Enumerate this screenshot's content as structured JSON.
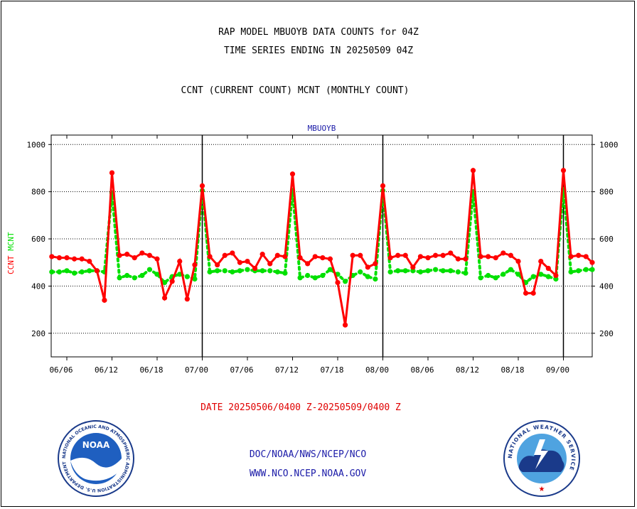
{
  "header": {
    "title": "RAP MODEL MBUOYB DATA COUNTS for 04Z",
    "subtitle": "TIME SERIES ENDING IN 20250509 04Z",
    "legend": "CCNT (CURRENT COUNT) MCNT (MONTHLY COUNT)"
  },
  "footer": {
    "date_range": "DATE 20250506/0400 Z-20250509/0400 Z",
    "link1": "DOC/NOAA/NWS/NCEP/NCO",
    "link2": "WWW.NCO.NCEP.NOAA.GOV"
  },
  "logos": {
    "left": {
      "name": "noaa-logo",
      "text": "NOAA",
      "ring_text": "NATIONAL OCEANIC AND ATMOSPHERIC ADMINISTRATION  U.S. DEPARTMENT OF COMMERCE"
    },
    "right": {
      "name": "nws-logo",
      "ring_text": "NATIONAL WEATHER SERVICE"
    }
  },
  "chart_data": {
    "type": "line",
    "title": "MBUOYB",
    "ylabel_left": [
      "CCNT",
      "MCNT"
    ],
    "ylim": [
      100,
      1040
    ],
    "yticks": [
      200,
      400,
      600,
      800,
      1000
    ],
    "grid": true,
    "x_tick_labels": [
      "06/06",
      "06/12",
      "06/18",
      "07/00",
      "07/06",
      "07/12",
      "07/18",
      "08/00",
      "08/06",
      "08/12",
      "08/18",
      "09/00"
    ],
    "day_markers": [
      "07/00",
      "08/00",
      "09/00"
    ],
    "series": [
      {
        "name": "CCNT",
        "color": "#ff0000",
        "values": [
          525,
          520,
          520,
          515,
          515,
          505,
          465,
          340,
          880,
          530,
          535,
          520,
          540,
          530,
          515,
          350,
          420,
          505,
          345,
          490,
          825,
          525,
          490,
          530,
          540,
          500,
          505,
          475,
          535,
          495,
          530,
          525,
          875,
          520,
          495,
          525,
          520,
          515,
          415,
          235,
          530,
          530,
          480,
          495,
          825,
          520,
          530,
          530,
          480,
          525,
          520,
          530,
          530,
          540,
          515,
          515,
          890,
          525,
          525,
          520,
          540,
          530,
          505,
          370,
          370,
          505,
          475,
          445,
          890,
          525,
          530,
          525,
          500
        ]
      },
      {
        "name": "MCNT",
        "color": "#00e000",
        "values": [
          460,
          460,
          465,
          455,
          460,
          465,
          465,
          460,
          795,
          435,
          445,
          435,
          445,
          470,
          450,
          415,
          440,
          450,
          440,
          430,
          805,
          460,
          465,
          465,
          460,
          465,
          470,
          465,
          465,
          465,
          460,
          455,
          805,
          435,
          445,
          435,
          445,
          470,
          450,
          420,
          445,
          460,
          440,
          430,
          805,
          460,
          465,
          465,
          465,
          460,
          465,
          470,
          465,
          465,
          460,
          455,
          800,
          435,
          445,
          435,
          450,
          470,
          450,
          415,
          440,
          450,
          440,
          430,
          810,
          460,
          465,
          470,
          470
        ]
      }
    ]
  }
}
